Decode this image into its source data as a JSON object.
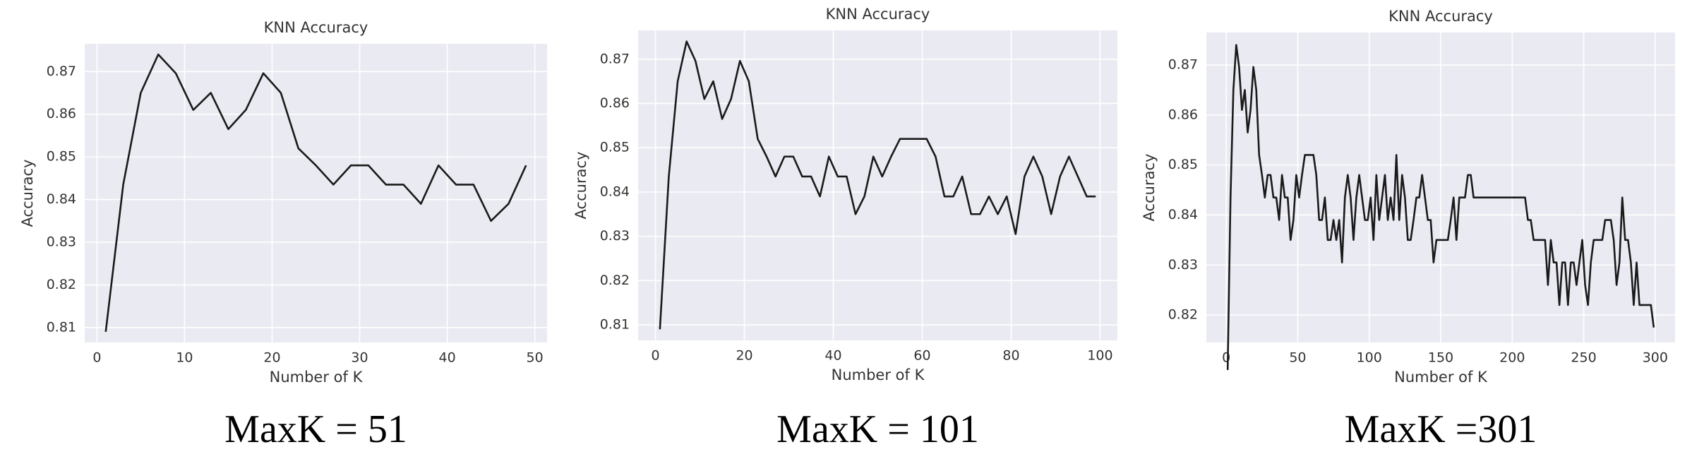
{
  "chart_data": [
    {
      "type": "line",
      "title": "KNN Accuracy",
      "x_label": "Number of K",
      "y_label": "Accuracy",
      "caption": "MaxK = 51",
      "grid": true,
      "color": "#1a1a1a",
      "xlim": [
        -1.4,
        51.4
      ],
      "xticks": [
        0,
        10,
        20,
        30,
        40,
        50
      ],
      "ylim": [
        0.8065,
        0.8765
      ],
      "yticks": [
        0.81,
        0.82,
        0.83,
        0.84,
        0.85,
        0.86,
        0.87
      ],
      "x": [
        1,
        3,
        5,
        7,
        9,
        11,
        13,
        15,
        17,
        19,
        21,
        23,
        25,
        27,
        29,
        31,
        33,
        35,
        37,
        39,
        41,
        43,
        45,
        47,
        49
      ],
      "values": [
        0.809,
        0.8435,
        0.865,
        0.874,
        0.8696,
        0.861,
        0.865,
        0.8565,
        0.861,
        0.8696,
        0.865,
        0.852,
        0.848,
        0.8435,
        0.848,
        0.848,
        0.8435,
        0.8435,
        0.839,
        0.848,
        0.8435,
        0.8435,
        0.835,
        0.839,
        0.848
      ]
    },
    {
      "type": "line",
      "title": "KNN Accuracy",
      "x_label": "Number of K",
      "y_label": "Accuracy",
      "caption": "MaxK = 101",
      "grid": true,
      "color": "#1a1a1a",
      "xlim": [
        -3.9,
        103.9
      ],
      "xticks": [
        0,
        20,
        40,
        60,
        80,
        100
      ],
      "ylim": [
        0.8065,
        0.8765
      ],
      "yticks": [
        0.81,
        0.82,
        0.83,
        0.84,
        0.85,
        0.86,
        0.87
      ],
      "x": [
        1,
        3,
        5,
        7,
        9,
        11,
        13,
        15,
        17,
        19,
        21,
        23,
        25,
        27,
        29,
        31,
        33,
        35,
        37,
        39,
        41,
        43,
        45,
        47,
        49,
        51,
        53,
        55,
        57,
        59,
        61,
        63,
        65,
        67,
        69,
        71,
        73,
        75,
        77,
        79,
        81,
        83,
        85,
        87,
        89,
        91,
        93,
        95,
        97,
        99
      ],
      "values": [
        0.809,
        0.8435,
        0.865,
        0.874,
        0.8696,
        0.861,
        0.865,
        0.8565,
        0.861,
        0.8696,
        0.865,
        0.852,
        0.848,
        0.8435,
        0.848,
        0.848,
        0.8435,
        0.8435,
        0.839,
        0.848,
        0.8435,
        0.8435,
        0.835,
        0.839,
        0.848,
        0.8435,
        0.848,
        0.852,
        0.852,
        0.852,
        0.852,
        0.848,
        0.839,
        0.839,
        0.8435,
        0.835,
        0.835,
        0.839,
        0.835,
        0.839,
        0.8305,
        0.8435,
        0.848,
        0.8435,
        0.835,
        0.8435,
        0.848,
        0.8435,
        0.839,
        0.839
      ]
    },
    {
      "type": "line",
      "title": "KNN Accuracy",
      "x_label": "Number of K",
      "y_label": "Accuracy",
      "caption": "MaxK =301",
      "grid": true,
      "color": "#1a1a1a",
      "xlim": [
        -13.9,
        313.9
      ],
      "xticks": [
        0,
        50,
        100,
        150,
        200,
        250,
        300
      ],
      "ylim": [
        0.8145,
        0.8765
      ],
      "yticks": [
        0.82,
        0.83,
        0.84,
        0.85,
        0.86,
        0.87
      ],
      "x": [
        1,
        3,
        5,
        7,
        9,
        11,
        13,
        15,
        17,
        19,
        21,
        23,
        25,
        27,
        29,
        31,
        33,
        35,
        37,
        39,
        41,
        43,
        45,
        47,
        49,
        51,
        53,
        55,
        57,
        59,
        61,
        63,
        65,
        67,
        69,
        71,
        73,
        75,
        77,
        79,
        81,
        83,
        85,
        87,
        89,
        91,
        93,
        95,
        97,
        99,
        101,
        103,
        105,
        107,
        109,
        111,
        113,
        115,
        117,
        119,
        121,
        123,
        125,
        127,
        129,
        131,
        133,
        135,
        137,
        139,
        141,
        143,
        145,
        147,
        149,
        151,
        153,
        155,
        157,
        159,
        161,
        163,
        165,
        167,
        169,
        171,
        173,
        175,
        177,
        179,
        181,
        183,
        185,
        187,
        189,
        191,
        193,
        195,
        197,
        199,
        201,
        203,
        205,
        207,
        209,
        211,
        213,
        215,
        217,
        219,
        221,
        223,
        225,
        227,
        229,
        231,
        233,
        235,
        237,
        239,
        241,
        243,
        245,
        247,
        249,
        251,
        253,
        255,
        257,
        259,
        261,
        263,
        265,
        267,
        269,
        271,
        273,
        275,
        277,
        279,
        281,
        283,
        285,
        287,
        289,
        291,
        293,
        295,
        297,
        299
      ],
      "values": [
        0.809,
        0.8435,
        0.865,
        0.874,
        0.8696,
        0.861,
        0.865,
        0.8565,
        0.861,
        0.8696,
        0.865,
        0.852,
        0.848,
        0.8435,
        0.848,
        0.848,
        0.8435,
        0.8435,
        0.839,
        0.848,
        0.8435,
        0.8435,
        0.835,
        0.839,
        0.848,
        0.8435,
        0.848,
        0.852,
        0.852,
        0.852,
        0.852,
        0.848,
        0.839,
        0.839,
        0.8435,
        0.835,
        0.835,
        0.839,
        0.835,
        0.839,
        0.8305,
        0.8435,
        0.848,
        0.8435,
        0.835,
        0.8435,
        0.848,
        0.8435,
        0.839,
        0.839,
        0.8435,
        0.835,
        0.848,
        0.839,
        0.8435,
        0.848,
        0.839,
        0.8435,
        0.839,
        0.852,
        0.839,
        0.848,
        0.8435,
        0.835,
        0.835,
        0.839,
        0.8435,
        0.8435,
        0.848,
        0.8435,
        0.839,
        0.839,
        0.8305,
        0.835,
        0.835,
        0.835,
        0.835,
        0.835,
        0.839,
        0.8435,
        0.835,
        0.8435,
        0.8435,
        0.8435,
        0.848,
        0.848,
        0.8435,
        0.8435,
        0.8435,
        0.8435,
        0.8435,
        0.8435,
        0.8435,
        0.8435,
        0.8435,
        0.8435,
        0.8435,
        0.8435,
        0.8435,
        0.8435,
        0.8435,
        0.8435,
        0.8435,
        0.8435,
        0.8435,
        0.839,
        0.839,
        0.835,
        0.835,
        0.835,
        0.835,
        0.835,
        0.826,
        0.835,
        0.8305,
        0.8305,
        0.822,
        0.8305,
        0.8305,
        0.822,
        0.8305,
        0.8305,
        0.826,
        0.8305,
        0.835,
        0.826,
        0.822,
        0.8305,
        0.835,
        0.835,
        0.835,
        0.835,
        0.839,
        0.839,
        0.839,
        0.835,
        0.826,
        0.8305,
        0.8435,
        0.835,
        0.835,
        0.8305,
        0.822,
        0.8305,
        0.822,
        0.822,
        0.822,
        0.822,
        0.822,
        0.8175
      ]
    }
  ]
}
